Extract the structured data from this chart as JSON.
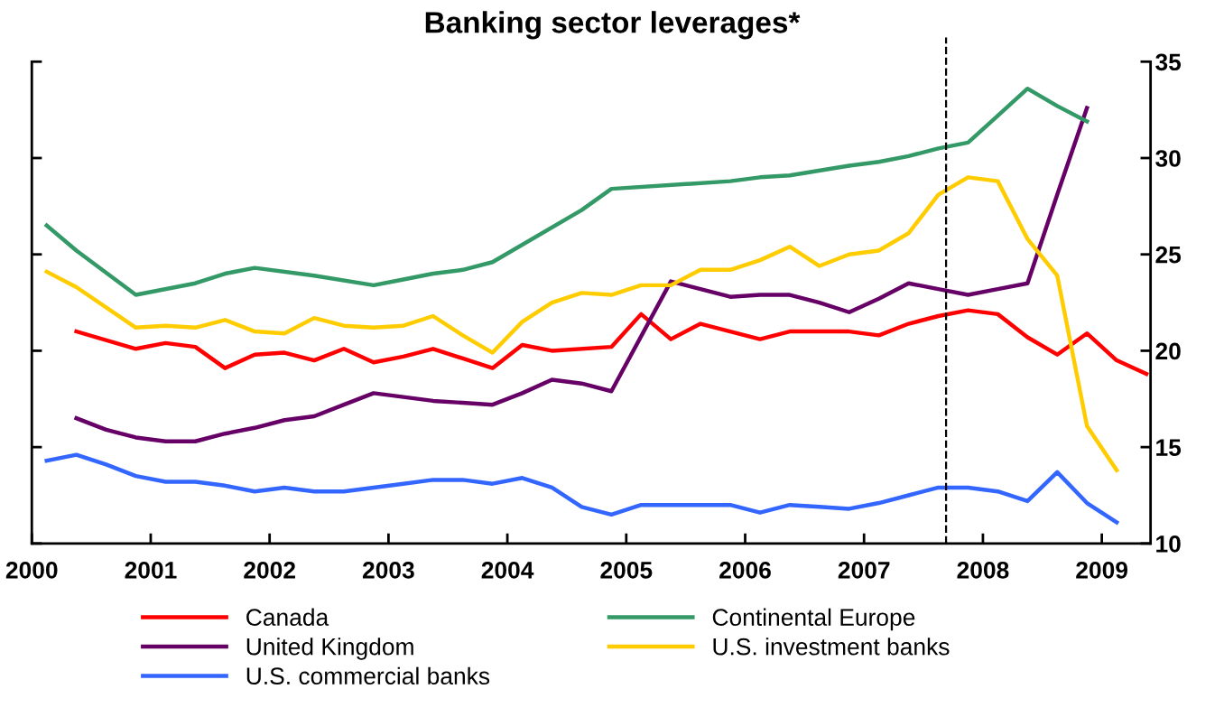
{
  "chart_data": {
    "type": "line",
    "title": "Banking sector leverages*",
    "xlim": [
      2000,
      2009.41
    ],
    "xticks": [
      2000,
      2001,
      2002,
      2003,
      2004,
      2005,
      2006,
      2007,
      2008,
      2009
    ],
    "ylim": [
      10,
      35
    ],
    "yticks": [
      10,
      15,
      20,
      25,
      30,
      35
    ],
    "grid": false,
    "legend": "bottom",
    "marker": "none",
    "line_style": "solid",
    "ref_lines": [
      {
        "axis": "x",
        "value": 2007.69,
        "color": "#000000",
        "line_style": "dashed"
      }
    ],
    "series": [
      {
        "name": "Canada",
        "color": "#ff0000",
        "x": [
          2000.375,
          2000.875,
          2001.125,
          2001.375,
          2001.625,
          2001.875,
          2002.125,
          2002.375,
          2002.625,
          2002.875,
          2003.125,
          2003.375,
          2003.625,
          2003.875,
          2004.125,
          2004.375,
          2004.875,
          2005.125,
          2005.375,
          2005.625,
          2005.875,
          2006.125,
          2006.375,
          2006.625,
          2006.875,
          2007.125,
          2007.375,
          2007.625,
          2007.875,
          2008.125,
          2008.375,
          2008.625,
          2008.875,
          2009.125,
          2009.375
        ],
        "values": [
          21.0,
          20.1,
          20.4,
          20.2,
          19.1,
          19.8,
          19.9,
          19.5,
          20.1,
          19.4,
          19.7,
          20.1,
          19.6,
          19.1,
          20.3,
          20.0,
          20.2,
          21.9,
          20.6,
          21.4,
          21.0,
          20.6,
          21.0,
          21.0,
          21.0,
          20.8,
          21.4,
          21.8,
          22.1,
          21.9,
          20.7,
          19.8,
          20.9,
          19.5,
          18.8
        ]
      },
      {
        "name": "United Kingdom",
        "color": "#660066",
        "x": [
          2000.375,
          2000.625,
          2000.875,
          2001.125,
          2001.375,
          2001.625,
          2001.875,
          2002.125,
          2002.375,
          2002.625,
          2002.875,
          2003.125,
          2003.375,
          2003.625,
          2003.875,
          2004.125,
          2004.375,
          2004.625,
          2004.875,
          2005.375,
          2005.625,
          2005.875,
          2006.125,
          2006.375,
          2006.625,
          2006.875,
          2007.125,
          2007.375,
          2007.625,
          2007.875,
          2008.125,
          2008.375,
          2008.625,
          2008.875
        ],
        "values": [
          16.5,
          15.9,
          15.5,
          15.3,
          15.3,
          15.7,
          16.0,
          16.4,
          16.6,
          17.2,
          17.8,
          17.6,
          17.4,
          17.3,
          17.2,
          17.8,
          18.5,
          18.3,
          17.9,
          23.6,
          23.2,
          22.8,
          22.9,
          22.9,
          22.5,
          22.0,
          22.7,
          23.5,
          23.2,
          22.9,
          23.2,
          23.5,
          28.1,
          32.6
        ]
      },
      {
        "name": "U.S. commercial banks",
        "color": "#3366ff",
        "x": [
          2000.125,
          2000.375,
          2000.625,
          2000.875,
          2001.125,
          2001.375,
          2001.625,
          2001.875,
          2002.125,
          2002.375,
          2002.625,
          2002.875,
          2003.125,
          2003.375,
          2003.625,
          2003.875,
          2004.125,
          2004.375,
          2004.625,
          2004.875,
          2005.125,
          2005.375,
          2005.625,
          2005.875,
          2006.125,
          2006.375,
          2006.625,
          2006.875,
          2007.125,
          2007.375,
          2007.625,
          2007.875,
          2008.125,
          2008.375,
          2008.625,
          2008.875,
          2009.125
        ],
        "values": [
          14.3,
          14.6,
          14.1,
          13.5,
          13.2,
          13.2,
          13.0,
          12.7,
          12.9,
          12.7,
          12.7,
          12.9,
          13.1,
          13.3,
          13.3,
          13.1,
          13.4,
          12.9,
          11.9,
          11.5,
          12.0,
          12.0,
          12.0,
          12.0,
          11.6,
          12.0,
          11.9,
          11.8,
          12.1,
          12.5,
          12.9,
          12.9,
          12.7,
          12.2,
          13.7,
          12.1,
          11.1
        ]
      },
      {
        "name": "Continental Europe",
        "color": "#339966",
        "x": [
          2000.125,
          2000.375,
          2000.875,
          2001.375,
          2001.625,
          2001.875,
          2002.375,
          2002.875,
          2003.125,
          2003.375,
          2003.625,
          2003.875,
          2004.625,
          2004.875,
          2005.875,
          2006.125,
          2006.375,
          2006.875,
          2007.125,
          2007.375,
          2007.625,
          2007.875,
          2008.125,
          2008.375,
          2008.625,
          2008.875
        ],
        "values": [
          26.5,
          25.2,
          22.9,
          23.5,
          24.0,
          24.3,
          23.9,
          23.4,
          23.7,
          24.0,
          24.2,
          24.6,
          27.3,
          28.4,
          28.8,
          29.0,
          29.1,
          29.6,
          29.8,
          30.1,
          30.5,
          30.8,
          32.2,
          33.6,
          32.7,
          31.9
        ]
      },
      {
        "name": "U.S. investment banks",
        "color": "#ffcc00",
        "x": [
          2000.125,
          2000.375,
          2000.875,
          2001.125,
          2001.375,
          2001.625,
          2001.875,
          2002.125,
          2002.375,
          2002.625,
          2002.875,
          2003.125,
          2003.375,
          2003.625,
          2003.875,
          2004.125,
          2004.375,
          2004.625,
          2004.875,
          2005.125,
          2005.375,
          2005.625,
          2005.875,
          2006.125,
          2006.375,
          2006.625,
          2006.875,
          2007.125,
          2007.375,
          2007.625,
          2007.875,
          2008.125,
          2008.375,
          2008.625,
          2008.875,
          2009.125
        ],
        "values": [
          24.1,
          23.3,
          21.2,
          21.3,
          21.2,
          21.6,
          21.0,
          20.9,
          21.7,
          21.3,
          21.2,
          21.3,
          21.8,
          20.8,
          19.9,
          21.5,
          22.5,
          23.0,
          22.9,
          23.4,
          23.4,
          24.2,
          24.2,
          24.7,
          25.4,
          24.4,
          25.0,
          25.2,
          26.1,
          28.1,
          29.0,
          28.8,
          25.8,
          23.9,
          16.1,
          13.8
        ]
      }
    ]
  }
}
